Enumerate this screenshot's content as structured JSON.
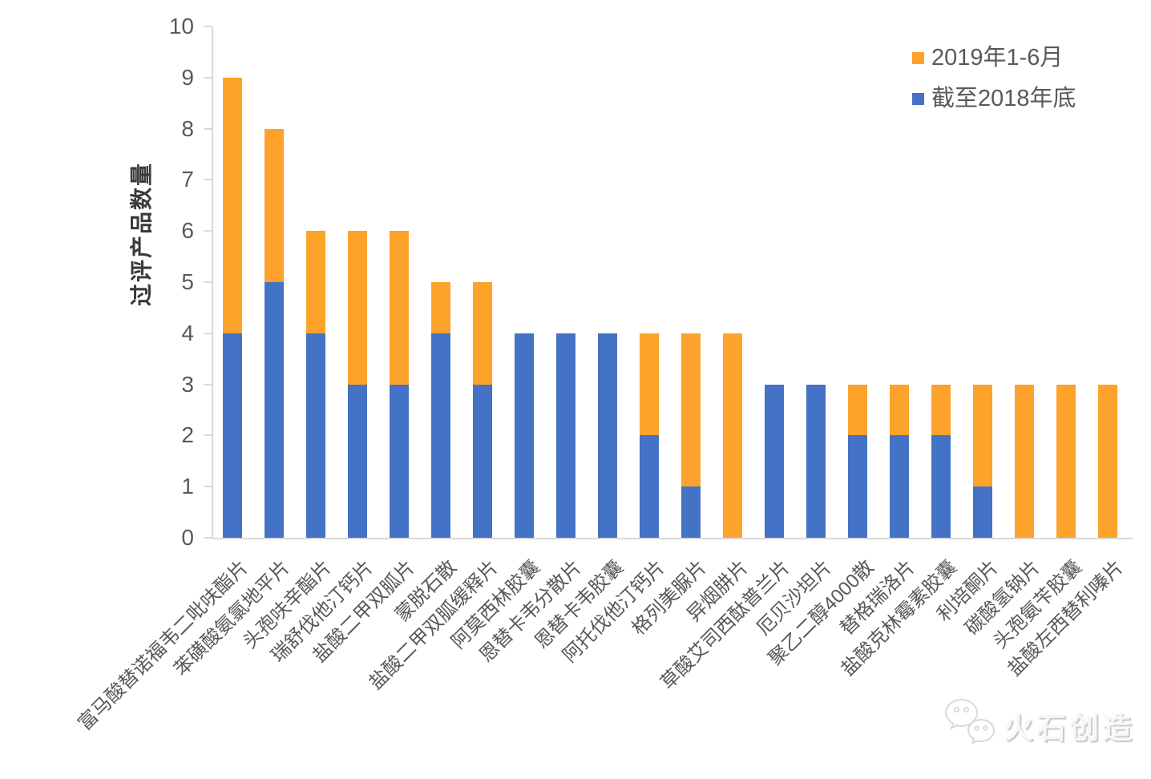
{
  "chart_data": {
    "type": "bar",
    "stacked": true,
    "title": "",
    "xlabel": "",
    "ylabel": "过评产品数量",
    "ylim": [
      0,
      10
    ],
    "ytick_step": 1,
    "grid": false,
    "legend_position": "top-right",
    "categories": [
      "富马酸替诺福韦二吡呋酯片",
      "苯磺酸氨氯地平片",
      "头孢呋辛酯片",
      "瑞舒伐他汀钙片",
      "盐酸二甲双胍片",
      "蒙脱石散",
      "盐酸二甲双胍缓释片",
      "阿莫西林胶囊",
      "恩替卡韦分散片",
      "恩替卡韦胶囊",
      "阿托伐他汀钙片",
      "格列美脲片",
      "异烟肼片",
      "草酸艾司西酞普兰片",
      "厄贝沙坦片",
      "聚乙二醇4000散",
      "替格瑞洛片",
      "盐酸克林霉素胶囊",
      "利培酮片",
      "碳酸氢钠片",
      "头孢氨苄胶囊",
      "盐酸左西替利嗪片"
    ],
    "series": [
      {
        "name": "截至2018年底",
        "color": "#4472C4",
        "values": [
          4,
          5,
          4,
          3,
          3,
          4,
          3,
          4,
          4,
          4,
          2,
          1,
          0,
          3,
          3,
          2,
          2,
          2,
          1,
          0,
          0,
          0
        ]
      },
      {
        "name": "2019年1-6月",
        "color": "#FDA32B",
        "values": [
          5,
          3,
          2,
          3,
          3,
          1,
          2,
          0,
          0,
          0,
          2,
          3,
          4,
          0,
          0,
          1,
          1,
          1,
          2,
          3,
          3,
          3
        ]
      }
    ]
  },
  "legend": {
    "items": [
      {
        "label": "2019年1-6月",
        "color": "#FDA32B"
      },
      {
        "label": "截至2018年底",
        "color": "#4472C4"
      }
    ]
  },
  "watermark": {
    "icon": "wechat-icon",
    "text": "火石创造"
  },
  "colors": {
    "axis": "#d9d9d9",
    "tick_text": "#595959",
    "axis_title_text": "#3a3a3a",
    "background": "#ffffff"
  }
}
